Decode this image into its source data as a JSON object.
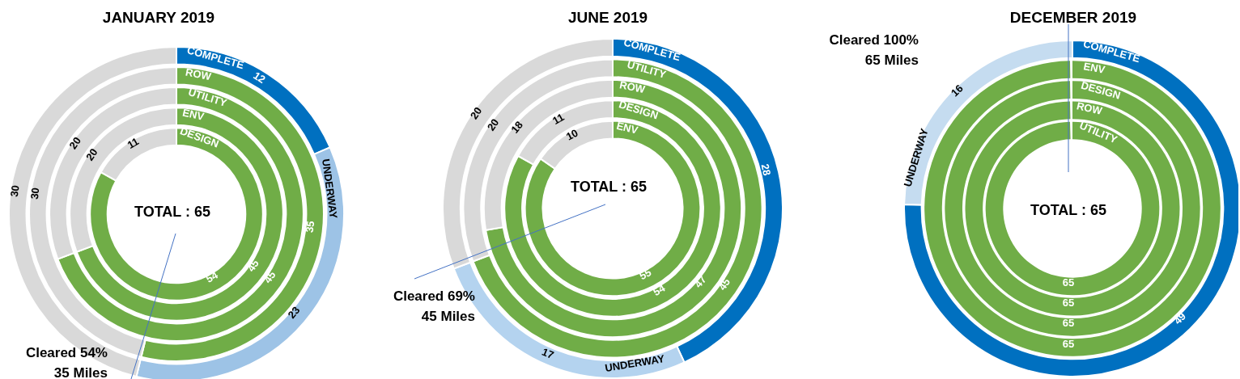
{
  "chart_data": [
    {
      "type": "donut",
      "title": "JANUARY 2019",
      "data_labels": true,
      "annotations": [
        "TOTAL : 65",
        "Cleared 54%\n35 Miles"
      ],
      "categories": [
        "COMPLETE",
        "UNDERWAY",
        null
      ],
      "values": [
        12,
        23,
        30
      ],
      "colors": [
        "#0070c0",
        "#9dc3e6",
        "#d9d9d9"
      ]
    },
    {
      "type": "donut",
      "data_labels": true,
      "categories": [
        "ROW",
        null
      ],
      "values": [
        35,
        30
      ],
      "colors": [
        "#70ad47",
        "#d9d9d9"
      ]
    },
    {
      "type": "donut",
      "data_labels": true,
      "categories": [
        "UTILITY",
        null
      ],
      "values": [
        45,
        20
      ],
      "colors": [
        "#70ad47",
        "#d9d9d9"
      ]
    },
    {
      "type": "donut",
      "data_labels": true,
      "categories": [
        "ENV",
        null
      ],
      "values": [
        45,
        20
      ],
      "colors": [
        "#70ad47",
        "#d9d9d9"
      ]
    },
    {
      "type": "donut",
      "data_labels": true,
      "categories": [
        "DESIGN",
        null
      ],
      "values": [
        54,
        11
      ],
      "colors": [
        "#70ad47",
        "#d9d9d9"
      ]
    },
    {
      "type": "donut",
      "title": "JUNE 2019",
      "data_labels": true,
      "annotations": [
        "TOTAL : 65",
        "Cleared 69%\n45 Miles"
      ],
      "categories": [
        "COMPLETE",
        "UNDERWAY",
        null
      ],
      "values": [
        28,
        17,
        20
      ],
      "colors": [
        "#0070c0",
        "#b4d3ef",
        "#d9d9d9"
      ]
    },
    {
      "type": "donut",
      "data_labels": true,
      "categories": [
        "UTILITY",
        null
      ],
      "values": [
        45,
        20
      ],
      "colors": [
        "#70ad47",
        "#d9d9d9"
      ]
    },
    {
      "type": "donut",
      "data_labels": true,
      "categories": [
        "ROW",
        null
      ],
      "values": [
        47,
        18
      ],
      "colors": [
        "#70ad47",
        "#d9d9d9"
      ]
    },
    {
      "type": "donut",
      "data_labels": true,
      "categories": [
        "DESIGN",
        null
      ],
      "values": [
        54,
        11
      ],
      "colors": [
        "#70ad47",
        "#d9d9d9"
      ]
    },
    {
      "type": "donut",
      "data_labels": true,
      "categories": [
        "ENV",
        null
      ],
      "values": [
        55,
        10
      ],
      "colors": [
        "#70ad47",
        "#d9d9d9"
      ]
    },
    {
      "type": "donut",
      "title": "DECEMBER 2019",
      "data_labels": true,
      "annotations": [
        "TOTAL : 65",
        "Cleared 100%\n65 Miles"
      ],
      "categories": [
        "COMPLETE",
        "UNDERWAY"
      ],
      "values": [
        49,
        16
      ],
      "colors": [
        "#0070c0",
        "#c5dcf0"
      ]
    },
    {
      "type": "pie",
      "data_labels": true,
      "categories": [
        "ENV"
      ],
      "values": [
        65
      ],
      "colors": [
        "#70ad47"
      ]
    },
    {
      "type": "pie",
      "data_labels": true,
      "categories": [
        "DESIGN"
      ],
      "values": [
        65
      ],
      "colors": [
        "#70ad47"
      ]
    },
    {
      "type": "pie",
      "data_labels": true,
      "categories": [
        "ROW"
      ],
      "values": [
        65
      ],
      "colors": [
        "#70ad47"
      ]
    },
    {
      "type": "pie",
      "data_labels": true,
      "categories": [
        "UTILITY"
      ],
      "values": [
        65
      ],
      "colors": [
        "#70ad47"
      ]
    }
  ]
}
